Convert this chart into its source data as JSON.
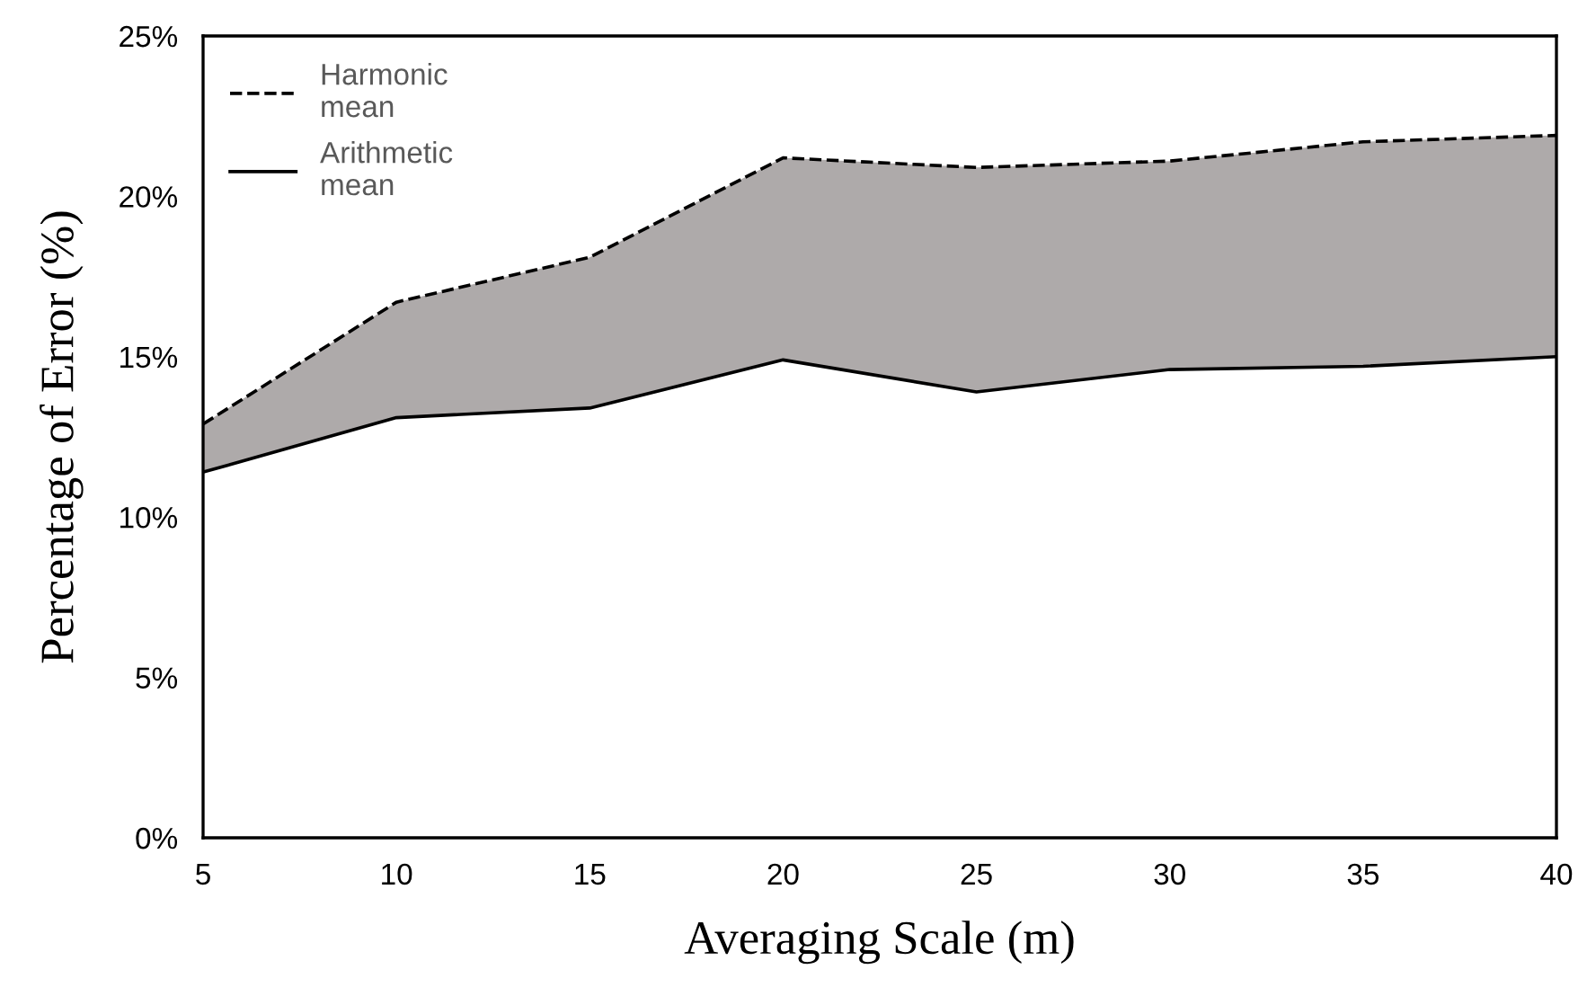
{
  "chart_data": {
    "type": "line",
    "xlabel": "Averaging Scale (m)",
    "ylabel": "Percentage of Error (%)",
    "x": [
      5,
      10,
      15,
      20,
      25,
      30,
      35,
      40
    ],
    "series": [
      {
        "name": "Harmonic mean",
        "color": "#000000",
        "line_style": "dashed",
        "values": [
          12.9,
          16.7,
          18.1,
          21.2,
          20.9,
          21.1,
          21.7,
          21.9
        ]
      },
      {
        "name": "Arithmetic mean",
        "color": "#000000",
        "line_style": "solid",
        "values": [
          11.4,
          13.1,
          13.4,
          14.9,
          13.9,
          14.6,
          14.7,
          15.0
        ],
        "lower": [
          11.4,
          13.1,
          13.4,
          14.9,
          13.9,
          14.6,
          14.7,
          15.0
        ],
        "upper": [
          12.9,
          16.7,
          18.1,
          21.2,
          20.9,
          21.1,
          21.7,
          21.9
        ]
      }
    ],
    "xlim": [
      5,
      40
    ],
    "xticks": [
      5,
      10,
      15,
      20,
      25,
      30,
      35,
      40
    ],
    "ylim": [
      0,
      25
    ],
    "yticks": [
      {
        "value": 0,
        "label": "0%"
      },
      {
        "value": 5,
        "label": "5%"
      },
      {
        "value": 10,
        "label": "10%"
      },
      {
        "value": 15,
        "label": "15%"
      },
      {
        "value": 20,
        "label": "20%"
      },
      {
        "value": 25,
        "label": "25%"
      }
    ],
    "grid": false,
    "legend": "top left",
    "marker": "none"
  }
}
